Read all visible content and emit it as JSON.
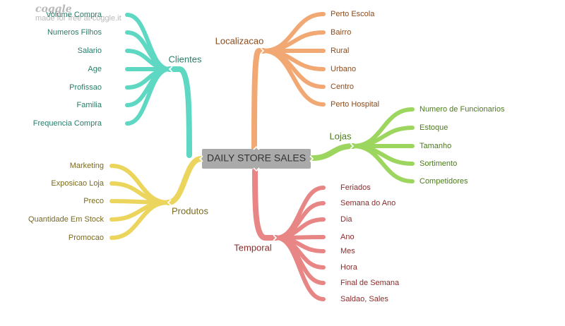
{
  "watermark": {
    "logo": "coggle",
    "tagline": "made for free at coggle.it"
  },
  "root": {
    "label": "DAILY STORE SALES",
    "fill": "#aaaaaa",
    "text_color": "#333333"
  },
  "branches": [
    {
      "id": "clientes",
      "label": "Clientes",
      "color": "#5ed8c2",
      "text_color": "#2b7c68",
      "children": [
        "Volume Compra",
        "Numeros Filhos",
        "Salario",
        "Age",
        "Profissao",
        "Familia",
        "Frequencia Compra"
      ]
    },
    {
      "id": "produtos",
      "label": "Produtos",
      "color": "#ecd55d",
      "text_color": "#7a6a1c",
      "children": [
        "Marketing",
        "Exposicao Loja",
        "Preco",
        "Quantidade Em Stock",
        "Promocao"
      ]
    },
    {
      "id": "localizacao",
      "label": "Localizacao",
      "color": "#f1a873",
      "text_color": "#8a4a1c",
      "children": [
        "Perto Escola",
        "Bairro",
        "Rural",
        "Urbano",
        "Centro",
        "Perto Hospital"
      ]
    },
    {
      "id": "lojas",
      "label": "Lojas",
      "color": "#9dd65e",
      "text_color": "#4c7a1c",
      "children": [
        "Numero de Funcionarios",
        "Estoque",
        "Tamanho",
        "Sortimento",
        "Competidores"
      ]
    },
    {
      "id": "temporal",
      "label": "Temporal",
      "color": "#e88585",
      "text_color": "#8a2c2c",
      "children": [
        "Feriados",
        "Semana do Ano",
        "Dia",
        "Ano",
        "Mes",
        "Hora",
        "Final de Semana",
        "Saldao, Sales"
      ]
    }
  ]
}
